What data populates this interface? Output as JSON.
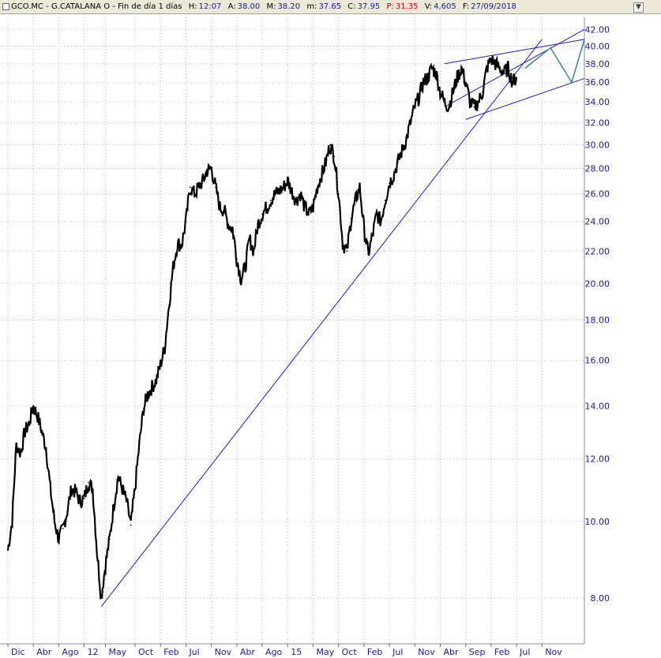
{
  "header": {
    "ticker": "GCO.MC - G.CATALANA O - Fin de día 1 días",
    "h_label": "H:",
    "h_value": "12:07",
    "a_label": "A:",
    "a_value": "38.00",
    "m_label": "M:",
    "m_value": "38.20",
    "mn_label": "m:",
    "mn_value": "37.65",
    "c_label": "C:",
    "c_value": "37.95",
    "p_label": "P:",
    "p_value": "31.35",
    "v_label": "V:",
    "v_value": "4,605",
    "f_label": "F:",
    "f_value": "27/09/2018",
    "close_symbol": "▼"
  },
  "colors": {
    "price": "#000000",
    "trendline": "#1a1acc",
    "projection": "#4a8a8a",
    "grid": "#b8b8b8",
    "axis_text": "#1a1a8c"
  },
  "chart_data": {
    "type": "line",
    "y_scale": "log",
    "ylim": [
      7.0,
      43.5
    ],
    "y_ticks": [
      8.0,
      10.0,
      12.0,
      14.0,
      16.0,
      18.0,
      20.0,
      22.0,
      24.0,
      26.0,
      28.0,
      30.0,
      32.0,
      34.0,
      36.0,
      38.0,
      40.0,
      42.0
    ],
    "y_tick_labels": [
      "8.00",
      "10.00",
      "12.00",
      "14.00",
      "16.00",
      "18.00",
      "20.00",
      "22.00",
      "24.00",
      "26.00",
      "28.00",
      "30.00",
      "32.00",
      "34.00",
      "36.00",
      "38.00",
      "40.00",
      "42.00"
    ],
    "x_tick_labels": [
      "Dic",
      "Abr",
      "Ago",
      "12",
      "May",
      "Oct",
      "Feb",
      "Jul",
      "Nov",
      "Abr",
      "Ago",
      "15",
      "May",
      "Oct",
      "Feb",
      "Jul",
      "Nov",
      "Abr",
      "Sep",
      "Feb",
      "Jul",
      "Nov"
    ],
    "x_tick_index": [
      0,
      6,
      12,
      18,
      23,
      30,
      36,
      42,
      48,
      54,
      60,
      66,
      72,
      78,
      84,
      90,
      96,
      102,
      108,
      114,
      120,
      126
    ],
    "series": [
      {
        "values": [
          9.2,
          10.0,
          12.5,
          12.2,
          13.0,
          13.3,
          14.0,
          13.6,
          13.0,
          12.4,
          11.0,
          10.0,
          9.5,
          9.8,
          10.3,
          11.0,
          10.9,
          10.6,
          10.7,
          11.2,
          11.0,
          9.2,
          8.0,
          8.8,
          9.5,
          10.5,
          11.4,
          11.0,
          10.6,
          9.9,
          11.0,
          12.5,
          13.9,
          14.5,
          14.8,
          15.1,
          15.8,
          16.6,
          18.8,
          21.0,
          22.5,
          22.4,
          24.0,
          26.5,
          26.0,
          26.5,
          27.0,
          27.8,
          28.0,
          26.5,
          25.0,
          24.8,
          23.8,
          23.5,
          21.5,
          20.3,
          21.0,
          22.8,
          22.0,
          23.8,
          24.5,
          25.0,
          25.5,
          26.0,
          26.2,
          26.5,
          27.0,
          26.2,
          25.5,
          26.0,
          25.0,
          24.5,
          25.0,
          26.5,
          27.5,
          28.5,
          30.0,
          29.0,
          26.0,
          22.5,
          22.0,
          24.2,
          25.5,
          26.5,
          23.5,
          21.8,
          23.0,
          24.5,
          24.0,
          25.5,
          26.8,
          27.5,
          28.5,
          29.5,
          30.5,
          32.0,
          33.5,
          34.5,
          36.0,
          36.5,
          37.5,
          37.0,
          35.0,
          34.0,
          33.5,
          35.0,
          36.5,
          37.5,
          36.0,
          34.0,
          33.5,
          34.0,
          35.0,
          37.5,
          38.5,
          38.0,
          37.5,
          37.0,
          37.5,
          36.0,
          36.5
        ]
      }
    ],
    "annotations": {
      "support_trendline": [
        [
          22,
          7.8
        ],
        [
          126,
          40.8
        ]
      ],
      "channel_upper": [
        [
          103,
          38.0
        ],
        [
          136,
          40.8
        ]
      ],
      "channel_lower": [
        [
          108,
          32.3
        ],
        [
          136,
          36.4
        ]
      ],
      "outer_line": [
        [
          103,
          33.5
        ],
        [
          136,
          42.0
        ]
      ],
      "projection_path": [
        [
          122,
          37.5
        ],
        [
          128,
          39.8
        ],
        [
          133,
          36.0
        ],
        [
          136,
          40.8
        ]
      ]
    }
  }
}
